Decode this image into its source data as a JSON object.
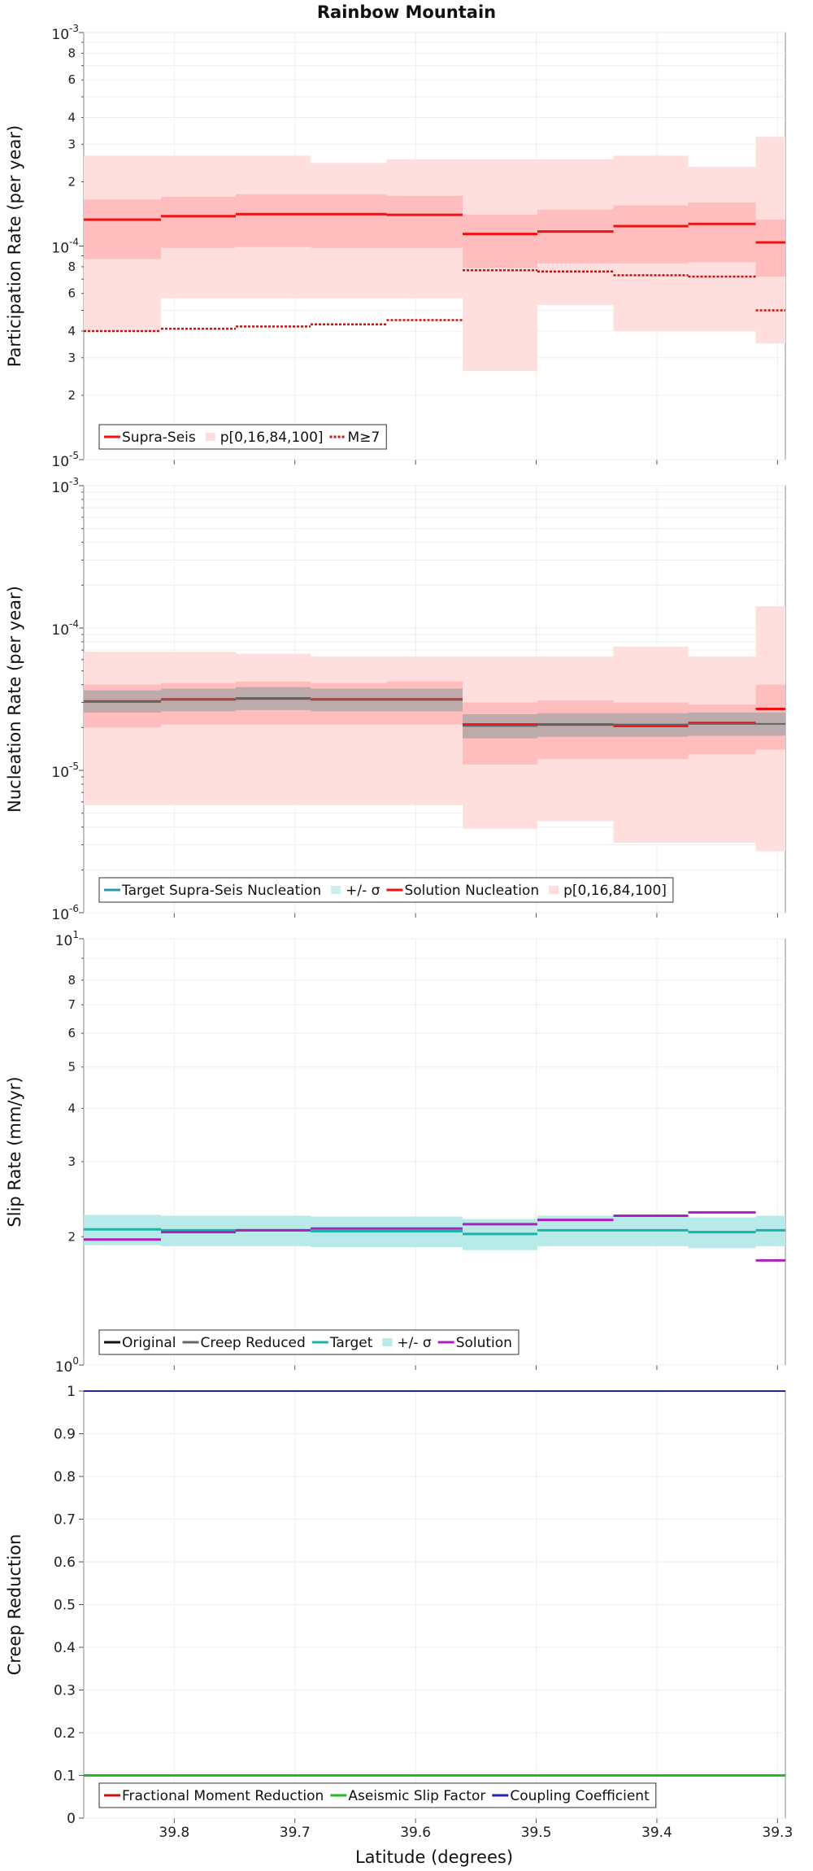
{
  "title": "Rainbow Mountain",
  "x_axis": {
    "label": "Latitude (degrees)",
    "range": [
      39.875,
      39.2935
    ],
    "ticks": [
      39.8,
      39.7,
      39.6,
      39.5,
      39.4,
      39.3
    ],
    "tick_labels": [
      "39.8",
      "39.7",
      "39.6",
      "39.5",
      "39.4",
      "39.3"
    ]
  },
  "segment_edges": [
    39.875,
    39.811,
    39.749,
    39.687,
    39.624,
    39.561,
    39.499,
    39.436,
    39.374,
    39.318,
    39.2935
  ],
  "chart_data": [
    {
      "type": "line",
      "panel": "participation",
      "ylabel": "Participation Rate (per year)",
      "yscale": "log",
      "ylim": [
        1e-05,
        0.001
      ],
      "legend": [
        "Supra-Seis",
        "p[0,16,84,100]",
        "M≥7"
      ],
      "series": [
        {
          "name": "Supra-Seis",
          "color": "#ee1111",
          "values": [
            0.000133,
            0.000138,
            0.000141,
            0.000141,
            0.00014,
            0.000114,
            0.000117,
            0.000124,
            0.000127,
            0.000104,
            0.0001
          ]
        },
        {
          "name": "p[0,16,84,100]",
          "color": "#ffcccc",
          "min": [
            4e-05,
            5.7e-05,
            5.7e-05,
            5.7e-05,
            5.7e-05,
            2.6e-05,
            5.3e-05,
            4e-05,
            4e-05,
            3.5e-05,
            3.5e-05
          ],
          "p16": [
            8.7e-05,
            9.8e-05,
            9.9e-05,
            9.8e-05,
            9.8e-05,
            7.9e-05,
            8.3e-05,
            8.3e-05,
            8.4e-05,
            7.2e-05,
            6.9e-05
          ],
          "p84": [
            0.000165,
            0.00017,
            0.000175,
            0.000175,
            0.000172,
            0.00014,
            0.000148,
            0.000155,
            0.00016,
            0.000133,
            0.00013
          ],
          "max": [
            0.000265,
            0.000265,
            0.000265,
            0.000245,
            0.000255,
            0.000255,
            0.000255,
            0.000265,
            0.000235,
            0.000325,
            0.00031
          ]
        },
        {
          "name": "M≥7",
          "color": "#cc1111",
          "values": [
            4e-05,
            4.1e-05,
            4.2e-05,
            4.3e-05,
            4.5e-05,
            7.7e-05,
            7.6e-05,
            7.3e-05,
            7.2e-05,
            5e-05,
            4.9e-05
          ]
        }
      ]
    },
    {
      "type": "line",
      "panel": "nucleation",
      "ylabel": "Nucleation Rate (per year)",
      "yscale": "log",
      "ylim": [
        1e-06,
        0.001
      ],
      "legend": [
        "Target Supra-Seis Nucleation",
        "+/- σ",
        "Solution Nucleation",
        "p[0,16,84,100]"
      ],
      "series": [
        {
          "name": "Target Supra-Seis Nucleation",
          "color": "#2a9aaa",
          "values": [
            3.05e-05,
            3.15e-05,
            3.2e-05,
            3.15e-05,
            3.15e-05,
            2.05e-05,
            2.1e-05,
            2.1e-05,
            2.12e-05,
            2.12e-05,
            2.07e-05
          ]
        },
        {
          "name": "+/- σ",
          "color": "#cccccc",
          "lower": [
            2.55e-05,
            2.6e-05,
            2.65e-05,
            2.6e-05,
            2.6e-05,
            1.68e-05,
            1.72e-05,
            1.72e-05,
            1.75e-05,
            1.75e-05,
            1.7e-05
          ],
          "upper": [
            3.65e-05,
            3.75e-05,
            3.85e-05,
            3.75e-05,
            3.75e-05,
            2.48e-05,
            2.52e-05,
            2.52e-05,
            2.55e-05,
            2.55e-05,
            2.5e-05
          ]
        },
        {
          "name": "Solution Nucleation",
          "color": "#ee1111",
          "values": [
            3.05e-05,
            3.15e-05,
            3.2e-05,
            3.15e-05,
            3.15e-05,
            2.1e-05,
            2.1e-05,
            2.05e-05,
            2.15e-05,
            2.7e-05,
            2.55e-05
          ]
        },
        {
          "name": "p[0,16,84,100]",
          "color": "#ffcccc",
          "min": [
            5.7e-06,
            5.7e-06,
            5.7e-06,
            5.7e-06,
            5.7e-06,
            3.9e-06,
            4.4e-06,
            3.1e-06,
            3.1e-06,
            2.7e-06,
            2.7e-06
          ],
          "p16": [
            2e-05,
            2.1e-05,
            2.1e-05,
            2.1e-05,
            2.1e-05,
            1.1e-05,
            1.2e-05,
            1.2e-05,
            1.3e-05,
            1.4e-05,
            1.4e-05
          ],
          "p84": [
            4e-05,
            4.1e-05,
            4.2e-05,
            4.1e-05,
            4.2e-05,
            3e-05,
            3.1e-05,
            3e-05,
            2.9e-05,
            4e-05,
            3.7e-05
          ],
          "max": [
            6.8e-05,
            6.8e-05,
            6.6e-05,
            6.3e-05,
            6.3e-05,
            6.3e-05,
            6.3e-05,
            7.4e-05,
            6.3e-05,
            0.000142,
            0.000142
          ]
        }
      ]
    },
    {
      "type": "line",
      "panel": "slip",
      "ylabel": "Slip Rate (mm/yr)",
      "yscale": "log",
      "ylim": [
        1,
        10
      ],
      "tick_labels": {
        "major": [
          "10⁰",
          "10¹"
        ],
        "minor": [
          "2",
          "3",
          "4",
          "5",
          "6",
          "7",
          "8"
        ]
      },
      "legend": [
        "Original",
        "Creep Reduced",
        "Target",
        "+/- σ",
        "Solution"
      ],
      "series": [
        {
          "name": "Target",
          "color": "#1fb3a8",
          "values": [
            2.08,
            2.07,
            2.07,
            2.06,
            2.06,
            2.03,
            2.07,
            2.07,
            2.05,
            2.07,
            2.05
          ]
        },
        {
          "name": "+/- σ",
          "color": "#b8eaea",
          "lower": [
            1.91,
            1.9,
            1.9,
            1.89,
            1.89,
            1.86,
            1.9,
            1.9,
            1.88,
            1.9,
            1.88
          ],
          "upper": [
            2.25,
            2.24,
            2.24,
            2.23,
            2.23,
            2.2,
            2.24,
            2.24,
            2.22,
            2.24,
            2.22
          ]
        },
        {
          "name": "Solution",
          "color": "#aa22bb",
          "values": [
            1.97,
            2.05,
            2.07,
            2.09,
            2.09,
            2.14,
            2.19,
            2.24,
            2.28,
            1.76,
            1.71
          ]
        }
      ]
    },
    {
      "type": "line",
      "panel": "creep",
      "ylabel": "Creep Reduction",
      "yscale": "linear",
      "ylim": [
        0,
        1
      ],
      "yticks": [
        0,
        0.1,
        0.2,
        0.3,
        0.4,
        0.5,
        0.6,
        0.7,
        0.8,
        0.9,
        1
      ],
      "legend": [
        "Fractional Moment Reduction",
        "Aseismic Slip Factor",
        "Coupling Coefficient"
      ],
      "series": [
        {
          "name": "Aseismic Slip Factor",
          "color": "#22bb22",
          "value": 0.1
        },
        {
          "name": "Coupling Coefficient",
          "color": "#2222aa",
          "value": 1.0
        }
      ]
    }
  ],
  "legend_colors": {
    "Supra-Seis": "#ee1111",
    "p[0,16,84,100]": "#ffdddd",
    "M≥7": "#cc1111",
    "Target Supra-Seis Nucleation": "#2a9aaa",
    "+/- σ (nucleation)": "#cceeee",
    "Solution Nucleation": "#ee1111",
    "Original": "#111111",
    "Creep Reduced": "#666666",
    "Target": "#1fb3a8",
    "+/- σ (slip)": "#b8eaea",
    "Solution": "#aa22bb",
    "Fractional Moment Reduction": "#cc1111",
    "Aseismic Slip Factor": "#22bb22",
    "Coupling Coefficient": "#2222aa"
  }
}
